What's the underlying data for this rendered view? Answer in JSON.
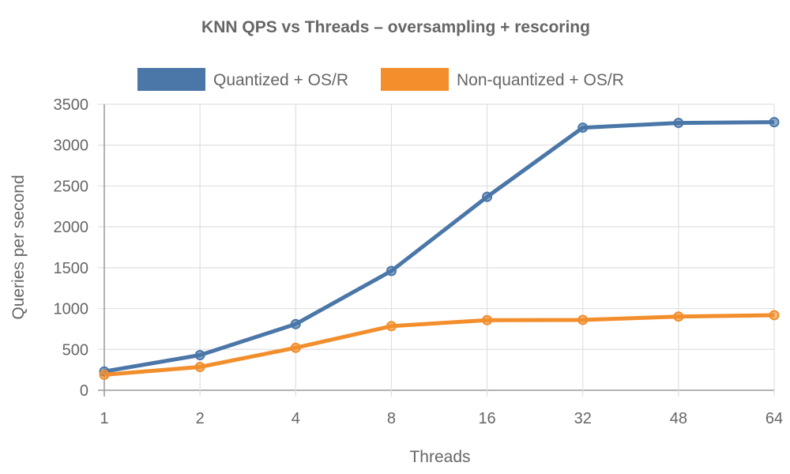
{
  "chart_data": {
    "type": "line",
    "title": "KNN QPS vs Threads – oversampling + rescoring",
    "xlabel": "Threads",
    "ylabel": "Queries per second",
    "categories": [
      "1",
      "2",
      "4",
      "8",
      "16",
      "32",
      "48",
      "64"
    ],
    "ylim": [
      0,
      3500
    ],
    "yticks": [
      0,
      500,
      1000,
      1500,
      2000,
      2500,
      3000,
      3500
    ],
    "grid": true,
    "legend": "top",
    "series": [
      {
        "name": "Quantized + OS/R",
        "color": "#4a76a8",
        "values": [
          230,
          430,
          810,
          1460,
          2367,
          3214,
          3272,
          3281
        ]
      },
      {
        "name": "Non-quantized + OS/R",
        "color": "#f28e2b",
        "values": [
          190,
          285,
          520,
          785,
          858,
          861,
          902,
          919
        ]
      }
    ]
  }
}
